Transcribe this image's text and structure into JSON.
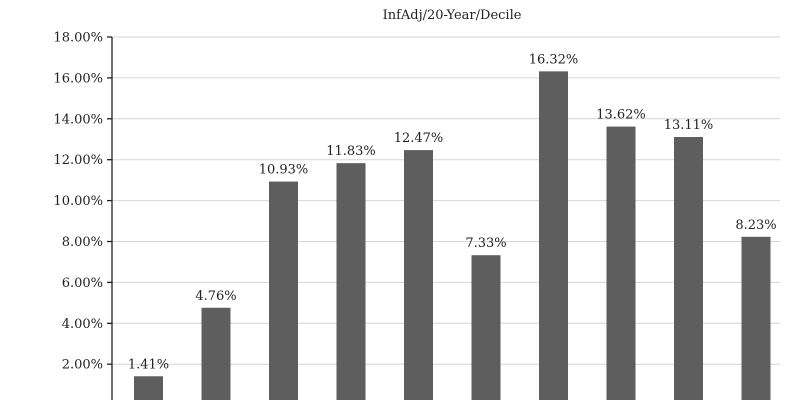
{
  "chart_data": {
    "type": "bar",
    "title": "InfAdj/20-Year/Decile",
    "xlabel": "",
    "ylabel": "",
    "ylim": [
      0,
      18
    ],
    "y_ticks": [
      2,
      4,
      6,
      8,
      10,
      12,
      14,
      16,
      18
    ],
    "y_tick_labels": [
      "2.00%",
      "4.00%",
      "6.00%",
      "8.00%",
      "10.00%",
      "12.00%",
      "14.00%",
      "16.00%",
      "18.00%"
    ],
    "grid": true,
    "colors": {
      "bar": "#5e5e5e",
      "grid": "#d6d6d6",
      "axis": "#222222"
    },
    "values": [
      1.41,
      4.76,
      10.93,
      11.83,
      12.47,
      7.33,
      16.32,
      13.62,
      13.11,
      8.23
    ],
    "value_labels": [
      "1.41%",
      "4.76%",
      "10.93%",
      "11.83%",
      "12.47%",
      "7.33%",
      "16.32%",
      "13.62%",
      "13.11%",
      "8.23%"
    ]
  }
}
